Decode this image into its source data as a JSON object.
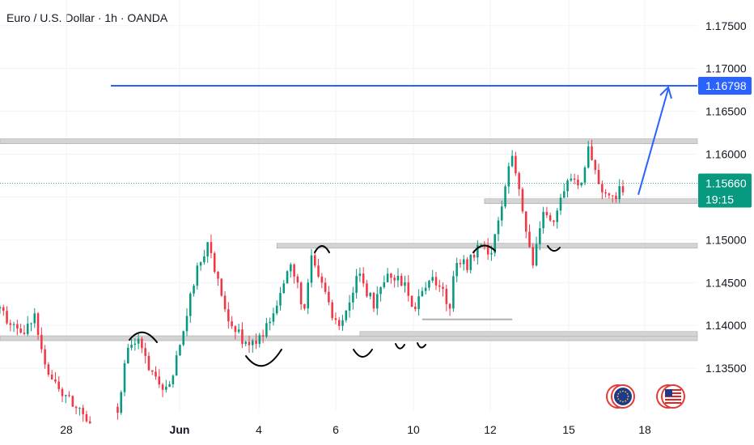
{
  "header": {
    "title": "Euro / U.S. Dollar · 1h · OANDA"
  },
  "chart_data": {
    "type": "candlestick",
    "ylim": [
      1.13,
      1.178
    ],
    "y_ticks": [
      "1.17500",
      "1.17000",
      "1.16500",
      "1.16000",
      "1.15500",
      "1.15000",
      "1.14500",
      "1.14000",
      "1.13500"
    ],
    "y_tick_values": [
      1.175,
      1.17,
      1.165,
      1.16,
      1.155,
      1.15,
      1.145,
      1.14,
      1.135
    ],
    "x_ticks": [
      "28",
      "Jun",
      "4",
      "6",
      "10",
      "12",
      "15",
      "18"
    ],
    "bull_color": "#089981",
    "bear_color": "#f23645",
    "price_labels": {
      "target": {
        "text": "1.16798",
        "value": 1.16798,
        "color": "#2962ff"
      },
      "current": {
        "text": "1.15660",
        "value": 1.1566,
        "color": "#089981"
      },
      "countdown": "19:15"
    },
    "zones": [
      {
        "value": 1.1615,
        "from_index": 0,
        "to_index": 190
      },
      {
        "value": 1.1545,
        "from_index": 140,
        "to_index": 190
      },
      {
        "value": 1.1493,
        "from_index": 80,
        "to_index": 190
      },
      {
        "value": 1.1385,
        "from_index": 0,
        "to_index": 142
      },
      {
        "value": 1.139,
        "from_index": 104,
        "to_index": 142
      }
    ],
    "close_path": [
      [
        0,
        1.142
      ],
      [
        6,
        1.1385
      ],
      [
        10,
        1.141
      ],
      [
        14,
        1.1345
      ],
      [
        18,
        1.132
      ],
      [
        22,
        1.1305
      ],
      [
        26,
        1.129
      ],
      [
        34,
        1.1305
      ],
      [
        37,
        1.1375
      ],
      [
        40,
        1.138
      ],
      [
        44,
        1.134
      ],
      [
        48,
        1.1325
      ],
      [
        52,
        1.137
      ],
      [
        56,
        1.145
      ],
      [
        60,
        1.15
      ],
      [
        64,
        1.143
      ],
      [
        68,
        1.1395
      ],
      [
        72,
        1.1375
      ],
      [
        76,
        1.139
      ],
      [
        80,
        1.143
      ],
      [
        84,
        1.147
      ],
      [
        88,
        1.142
      ],
      [
        90,
        1.1475
      ],
      [
        94,
        1.144
      ],
      [
        97,
        1.14
      ],
      [
        100,
        1.142
      ],
      [
        104,
        1.146
      ],
      [
        108,
        1.142
      ],
      [
        112,
        1.1455
      ],
      [
        116,
        1.145
      ],
      [
        120,
        1.142
      ],
      [
        124,
        1.146
      ],
      [
        128,
        1.144
      ],
      [
        130,
        1.142
      ],
      [
        132,
        1.148
      ],
      [
        135,
        1.147
      ],
      [
        138,
        1.149
      ],
      [
        142,
        1.149
      ],
      [
        146,
        1.156
      ],
      [
        148,
        1.16
      ],
      [
        151,
        1.153
      ],
      [
        154,
        1.147
      ],
      [
        157,
        1.154
      ],
      [
        160,
        1.152
      ],
      [
        163,
        1.156
      ],
      [
        166,
        1.157
      ],
      [
        168,
        1.156
      ],
      [
        170,
        1.161
      ],
      [
        173,
        1.157
      ],
      [
        176,
        1.1545
      ],
      [
        180,
        1.156
      ]
    ],
    "candle_count": 181,
    "seed": 9
  },
  "annotations": {
    "target_line_value": 1.16798,
    "arrow_from_value": 1.1545,
    "arrow_to_value": 1.168
  },
  "icons": {
    "eu_flag": "eu-flag-icon",
    "us_flag": "us-flag-icon"
  },
  "colors": {
    "blue": "#2962ff",
    "zone": "#c8c8c8",
    "grid": "#f0f3fa",
    "text": "#131722"
  }
}
